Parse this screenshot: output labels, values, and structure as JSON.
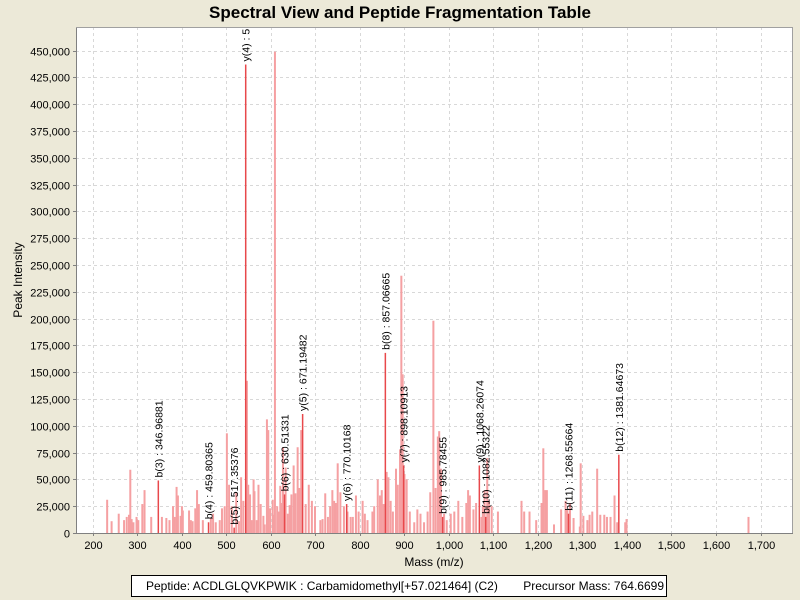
{
  "chart_data": {
    "type": "bar",
    "title": "Spectral View and Peptide Fragmentation Table",
    "xlabel": "Mass (m/z)",
    "ylabel": "Peak Intensity",
    "xlim": [
      162,
      1773
    ],
    "ylim": [
      0,
      472000
    ],
    "grid": true,
    "xticks": [
      200,
      300,
      400,
      500,
      600,
      700,
      800,
      900,
      1000,
      1100,
      1200,
      1300,
      1400,
      1500,
      1600,
      1700
    ],
    "xtick_labels": [
      "200",
      "300",
      "400",
      "500",
      "600",
      "700",
      "800",
      "900",
      "1,000",
      "1,100",
      "1,200",
      "1,300",
      "1,400",
      "1,500",
      "1,600",
      "1,700"
    ],
    "yticks": [
      0,
      25000,
      50000,
      75000,
      100000,
      125000,
      150000,
      175000,
      200000,
      225000,
      250000,
      275000,
      300000,
      325000,
      350000,
      375000,
      400000,
      425000,
      450000
    ],
    "ytick_labels": [
      "0",
      "25,000",
      "50,000",
      "75,000",
      "100,000",
      "125,000",
      "150,000",
      "175,000",
      "200,000",
      "225,000",
      "250,000",
      "275,000",
      "300,000",
      "325,000",
      "350,000",
      "375,000",
      "400,000",
      "425,000",
      "450,000"
    ],
    "colors": {
      "annotated": "#E8484B",
      "unannotated": "#F5A0A2",
      "grid": "#D8D8D8"
    },
    "annotations": [
      {
        "label": "b(3) : 346.96881",
        "x": 346.97,
        "y": 49000
      },
      {
        "label": "b(4) : 459.80365",
        "x": 459.8,
        "y": 10000
      },
      {
        "label": "b(5) : 517.35376",
        "x": 517.35,
        "y": 5000
      },
      {
        "label": "y(4) : 5",
        "x": 543.3,
        "y": 437000
      },
      {
        "label": "b(6) : 630.51331",
        "x": 630.51,
        "y": 36000
      },
      {
        "label": "y(5) : 671.19482",
        "x": 671.19,
        "y": 111000
      },
      {
        "label": "y(6) : 770.10168",
        "x": 770.1,
        "y": 27000
      },
      {
        "label": "b(8) : 857.06665",
        "x": 857.07,
        "y": 168000
      },
      {
        "label": "y(7) : 898.10913",
        "x": 898.11,
        "y": 63000
      },
      {
        "label": "b(9) : 985.78455",
        "x": 985.78,
        "y": 15000
      },
      {
        "label": "y(9) : 1068.26074",
        "x": 1068.26,
        "y": 63000
      },
      {
        "label": "b(10) : 1082.55322",
        "x": 1082.55,
        "y": 15000
      },
      {
        "label": "b(11) : 1268.55664",
        "x": 1268.56,
        "y": 18000
      },
      {
        "label": "b(12) : 1381.64673",
        "x": 1381.65,
        "y": 73000
      }
    ],
    "peaks": [
      [
        232,
        31000
      ],
      [
        242,
        11000
      ],
      [
        258,
        18000
      ],
      [
        270,
        12000
      ],
      [
        276,
        15000
      ],
      [
        281,
        17000
      ],
      [
        284,
        59000
      ],
      [
        287,
        13000
      ],
      [
        291,
        10000
      ],
      [
        298,
        15000
      ],
      [
        302,
        12000
      ],
      [
        311,
        27000
      ],
      [
        316,
        40000
      ],
      [
        331,
        15000
      ],
      [
        355,
        15000
      ],
      [
        365,
        14000
      ],
      [
        372,
        12000
      ],
      [
        380,
        25000
      ],
      [
        384,
        15000
      ],
      [
        388,
        43000
      ],
      [
        391,
        35000
      ],
      [
        397,
        16000
      ],
      [
        400,
        25000
      ],
      [
        402,
        21000
      ],
      [
        416,
        21000
      ],
      [
        420,
        12000
      ],
      [
        424,
        11000
      ],
      [
        430,
        23000
      ],
      [
        434,
        40000
      ],
      [
        438,
        27000
      ],
      [
        447,
        12000
      ],
      [
        465,
        14000
      ],
      [
        470,
        18000
      ],
      [
        476,
        10000
      ],
      [
        485,
        12000
      ],
      [
        490,
        23000
      ],
      [
        496,
        25000
      ],
      [
        501,
        93000
      ],
      [
        506,
        45000
      ],
      [
        512,
        25000
      ],
      [
        522,
        38000
      ],
      [
        528,
        11000
      ],
      [
        533,
        52000
      ],
      [
        538,
        30000
      ],
      [
        546,
        142000
      ],
      [
        549,
        45000
      ],
      [
        553,
        36000
      ],
      [
        557,
        12000
      ],
      [
        561,
        50000
      ],
      [
        563,
        39000
      ],
      [
        568,
        12000
      ],
      [
        572,
        45000
      ],
      [
        577,
        27000
      ],
      [
        583,
        16000
      ],
      [
        586,
        8000
      ],
      [
        591,
        106000
      ],
      [
        594,
        96000
      ],
      [
        598,
        23000
      ],
      [
        604,
        31000
      ],
      [
        607,
        17000
      ],
      [
        609,
        449000
      ],
      [
        614,
        25000
      ],
      [
        617,
        20000
      ],
      [
        621,
        44000
      ],
      [
        624,
        28000
      ],
      [
        627,
        80000
      ],
      [
        633,
        61000
      ],
      [
        638,
        18000
      ],
      [
        642,
        26000
      ],
      [
        646,
        36000
      ],
      [
        651,
        63000
      ],
      [
        655,
        37000
      ],
      [
        660,
        80000
      ],
      [
        664,
        42000
      ],
      [
        668,
        96000
      ],
      [
        678,
        27000
      ],
      [
        685,
        45000
      ],
      [
        692,
        30000
      ],
      [
        699,
        25000
      ],
      [
        711,
        12000
      ],
      [
        716,
        13000
      ],
      [
        722,
        37000
      ],
      [
        728,
        15000
      ],
      [
        733,
        25000
      ],
      [
        738,
        40000
      ],
      [
        742,
        30000
      ],
      [
        746,
        28000
      ],
      [
        750,
        65000
      ],
      [
        756,
        38000
      ],
      [
        764,
        25000
      ],
      [
        772,
        20000
      ],
      [
        779,
        15000
      ],
      [
        784,
        15000
      ],
      [
        791,
        35000
      ],
      [
        797,
        20000
      ],
      [
        806,
        30000
      ],
      [
        811,
        18000
      ],
      [
        817,
        12000
      ],
      [
        828,
        20000
      ],
      [
        832,
        25000
      ],
      [
        840,
        50000
      ],
      [
        845,
        35000
      ],
      [
        849,
        40000
      ],
      [
        853,
        27000
      ],
      [
        860,
        57000
      ],
      [
        864,
        52000
      ],
      [
        869,
        30000
      ],
      [
        874,
        20000
      ],
      [
        881,
        60000
      ],
      [
        885,
        45000
      ],
      [
        890,
        78000
      ],
      [
        893,
        240000
      ],
      [
        896,
        148000
      ],
      [
        900,
        55000
      ],
      [
        905,
        50000
      ],
      [
        912,
        20000
      ],
      [
        922,
        10000
      ],
      [
        929,
        22000
      ],
      [
        936,
        18000
      ],
      [
        944,
        10000
      ],
      [
        952,
        20000
      ],
      [
        958,
        38000
      ],
      [
        965,
        198000
      ],
      [
        970,
        42000
      ],
      [
        975,
        90000
      ],
      [
        978,
        95000
      ],
      [
        982,
        60000
      ],
      [
        989,
        18000
      ],
      [
        995,
        12000
      ],
      [
        1004,
        18000
      ],
      [
        1012,
        20000
      ],
      [
        1021,
        30000
      ],
      [
        1030,
        15000
      ],
      [
        1039,
        28000
      ],
      [
        1043,
        40000
      ],
      [
        1047,
        35000
      ],
      [
        1055,
        22000
      ],
      [
        1061,
        28000
      ],
      [
        1073,
        15000
      ],
      [
        1076,
        25000
      ],
      [
        1080,
        40000
      ],
      [
        1086,
        70000
      ],
      [
        1090,
        30000
      ],
      [
        1096,
        25000
      ],
      [
        1110,
        20000
      ],
      [
        1163,
        30000
      ],
      [
        1169,
        20000
      ],
      [
        1181,
        20000
      ],
      [
        1196,
        12000
      ],
      [
        1208,
        28000
      ],
      [
        1212,
        79000
      ],
      [
        1216,
        40000
      ],
      [
        1220,
        40000
      ],
      [
        1236,
        8000
      ],
      [
        1252,
        22000
      ],
      [
        1262,
        30000
      ],
      [
        1266,
        22000
      ],
      [
        1272,
        28000
      ],
      [
        1280,
        14000
      ],
      [
        1294,
        6000
      ],
      [
        1296,
        65000
      ],
      [
        1302,
        16000
      ],
      [
        1311,
        12000
      ],
      [
        1316,
        17000
      ],
      [
        1322,
        20000
      ],
      [
        1333,
        60000
      ],
      [
        1340,
        17000
      ],
      [
        1349,
        17000
      ],
      [
        1355,
        15000
      ],
      [
        1363,
        15000
      ],
      [
        1372,
        35000
      ],
      [
        1378,
        10000
      ],
      [
        1396,
        10000
      ],
      [
        1399,
        13000
      ],
      [
        1673,
        15000
      ]
    ]
  },
  "footer": {
    "peptide": "Peptide: ACDLGLQVKPWIK : Carbamidomethyl[+57.021464] (C2)",
    "precursor": "Precursor Mass: 764.6699"
  }
}
